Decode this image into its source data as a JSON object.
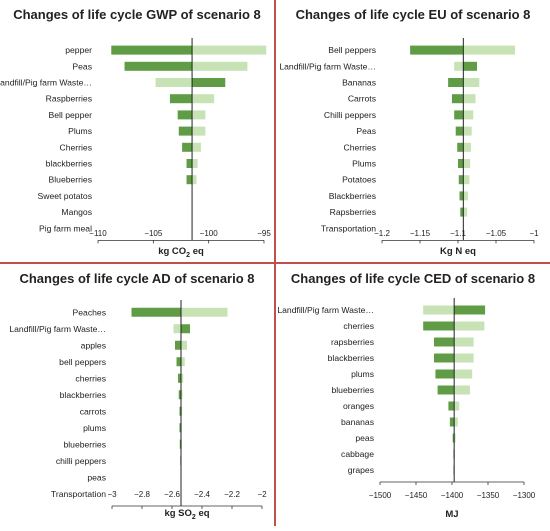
{
  "colors": {
    "dark": "#5f9c45",
    "light": "#c7e2b4",
    "axis": "#333333",
    "divider": "#c0504d"
  },
  "chart_data": [
    {
      "type": "bar",
      "title": "Changes of life cycle GWP of scenario 8",
      "xlabel_parts": [
        "kg CO",
        "2",
        " eq"
      ],
      "xlim": [
        -110,
        -95
      ],
      "xticks": [
        -110,
        -105,
        -100,
        -95
      ],
      "xtick_labels": [
        "−110",
        "−105",
        "−100",
        "−95"
      ],
      "baseline": -101.5,
      "categories": [
        "pepper",
        "Peas",
        "Landfill/Pig farm Waste…",
        "Raspberries",
        "Bell pepper",
        "Plums",
        "Cherries",
        "blackberries",
        "Blueberries",
        "Sweet potatos",
        "Mangos",
        "Pig farm meal"
      ],
      "series": [
        {
          "values": [
            -108.8,
            -107.6,
            -98.5,
            -103.5,
            -102.8,
            -102.7,
            -102.4,
            -102.0,
            -102.0,
            -101.5,
            -101.5,
            -101.5
          ]
        },
        {
          "values": [
            -94.8,
            -96.5,
            -104.8,
            -99.5,
            -100.3,
            -100.3,
            -100.7,
            -101.0,
            -101.1,
            -101.5,
            -101.5,
            -101.5
          ]
        }
      ]
    },
    {
      "type": "bar",
      "title": "Changes of life cycle EU of scenario 8",
      "xlabel_parts": [
        "Kg N eq"
      ],
      "xlim": [
        -1.2,
        -1.0
      ],
      "xticks": [
        -1.2,
        -1.15,
        -1.1,
        -1.05,
        -1.0
      ],
      "xtick_labels": [
        "−1.2",
        "−1.15",
        "−1.1",
        "−1.05",
        "−1"
      ],
      "baseline": -1.093,
      "categories": [
        "Bell peppers",
        "Landfill/Pig farm Waste…",
        "Bananas",
        "Carrots",
        "Chilli peppers",
        "Peas",
        "Cherries",
        "Plums",
        "Potatoes",
        "Blackberries",
        "Rapsberries",
        "Transportation"
      ],
      "series": [
        {
          "values": [
            -1.163,
            -1.075,
            -1.113,
            -1.108,
            -1.105,
            -1.103,
            -1.101,
            -1.1,
            -1.099,
            -1.098,
            -1.097,
            -1.093
          ]
        },
        {
          "values": [
            -1.025,
            -1.105,
            -1.072,
            -1.077,
            -1.08,
            -1.082,
            -1.083,
            -1.084,
            -1.085,
            -1.087,
            -1.088,
            -1.093
          ]
        }
      ]
    },
    {
      "type": "bar",
      "title": "Changes of life cycle AD of scenario 8",
      "xlabel_parts": [
        "kg SO",
        "2",
        " eq"
      ],
      "xlim": [
        -3.0,
        -2.0
      ],
      "xticks": [
        -3.0,
        -2.8,
        -2.6,
        -2.4,
        -2.2,
        -2.0
      ],
      "xtick_labels": [
        "−3",
        "−2.8",
        "−2.6",
        "−2.4",
        "−2.2",
        "−2"
      ],
      "baseline": -2.54,
      "categories": [
        "Peaches",
        "Landfill/Pig farm Waste…",
        "apples",
        "bell peppers",
        "cherries",
        "blackberries",
        "carrots",
        "plums",
        "blueberries",
        "chilli peppers",
        "peas",
        "Transportation"
      ],
      "series": [
        {
          "values": [
            -2.87,
            -2.48,
            -2.58,
            -2.57,
            -2.56,
            -2.555,
            -2.55,
            -2.55,
            -2.548,
            -2.545,
            -2.543,
            -2.54
          ]
        },
        {
          "values": [
            -2.23,
            -2.59,
            -2.5,
            -2.515,
            -2.525,
            -2.53,
            -2.532,
            -2.535,
            -2.535,
            -2.537,
            -2.538,
            -2.54
          ]
        }
      ]
    },
    {
      "type": "bar",
      "title": "Changes of life cycle CED of scenario 8",
      "xlabel_parts": [
        "MJ"
      ],
      "xlim": [
        -1500,
        -1300
      ],
      "xticks": [
        -1500,
        -1450,
        -1400,
        -1350,
        -1300
      ],
      "xtick_labels": [
        "−1500",
        "−1450",
        "−1400",
        "−1350",
        "−1300"
      ],
      "baseline": -1397,
      "categories": [
        "Landfill/Pig farm Waste…",
        "cherries",
        "rapsberries",
        "blackberries",
        "plums",
        "blueberries",
        "oranges",
        "bananas",
        "peas",
        "cabbage",
        "grapes"
      ],
      "series": [
        {
          "values": [
            -1354,
            -1440,
            -1425,
            -1425,
            -1423,
            -1420,
            -1405,
            -1403,
            -1399,
            -1398,
            -1398
          ]
        },
        {
          "values": [
            -1440,
            -1355,
            -1370,
            -1370,
            -1372,
            -1375,
            -1390,
            -1392,
            -1395,
            -1396,
            -1397
          ]
        }
      ]
    }
  ]
}
